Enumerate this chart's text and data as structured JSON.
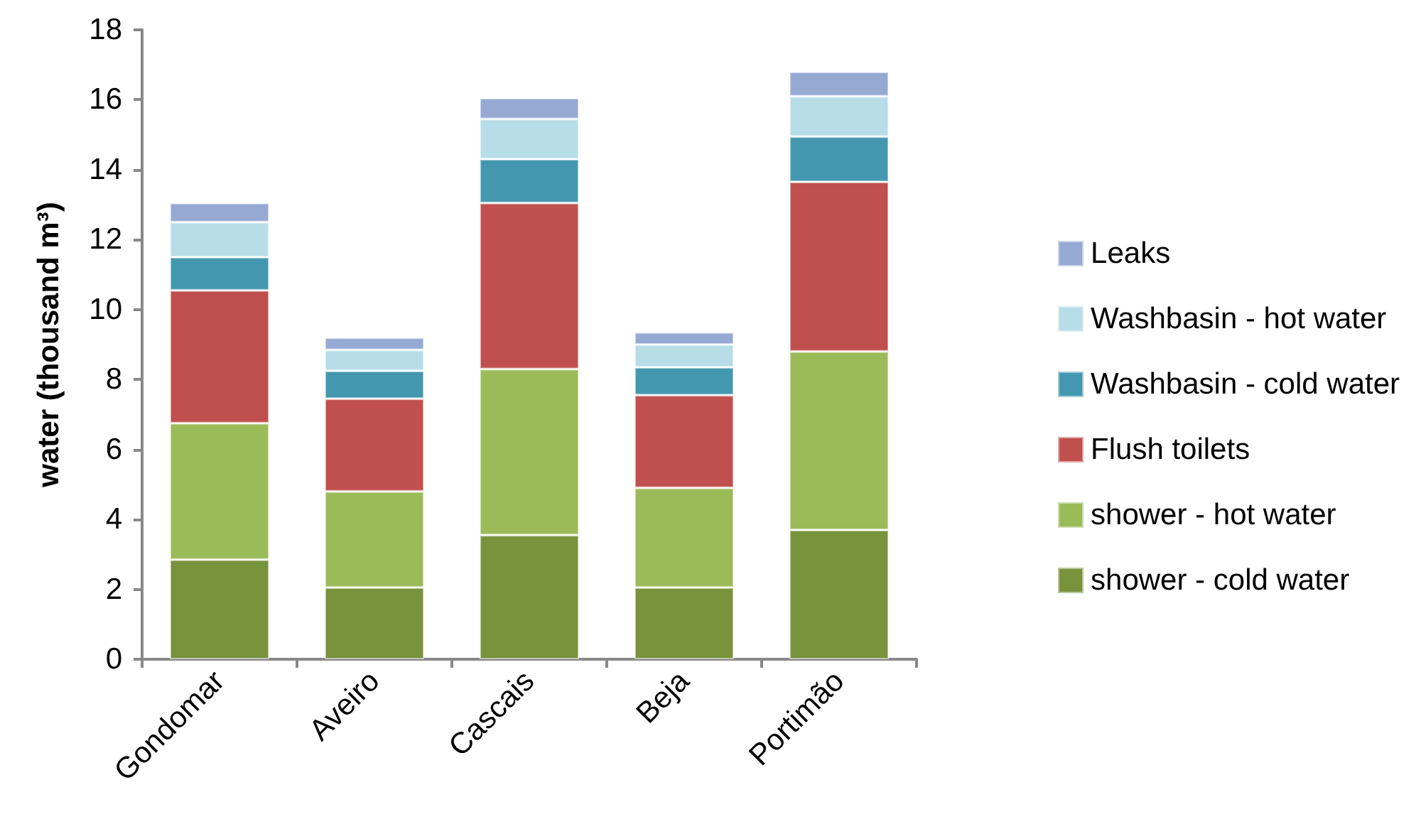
{
  "chart_data": {
    "type": "bar",
    "stacked": true,
    "ylabel": "water (thousand m³)",
    "categories": [
      "Gondomar",
      "Aveiro",
      "Cascais",
      "Beja",
      "Portimão"
    ],
    "series": [
      {
        "name": "shower - cold water",
        "color": "#77933c",
        "values": [
          2.85,
          2.05,
          3.55,
          2.05,
          3.7
        ]
      },
      {
        "name": "shower - hot water",
        "color": "#9bbb59",
        "values": [
          3.9,
          2.75,
          4.75,
          2.85,
          5.1
        ]
      },
      {
        "name": "Flush toilets",
        "color": "#c0504d",
        "values": [
          3.8,
          2.65,
          4.75,
          2.65,
          4.85
        ]
      },
      {
        "name": "Washbasin - cold water",
        "color": "#4398af",
        "values": [
          0.95,
          0.8,
          1.25,
          0.8,
          1.3
        ]
      },
      {
        "name": "Washbasin - hot water",
        "color": "#b7dde8",
        "values": [
          1.0,
          0.6,
          1.15,
          0.65,
          1.15
        ]
      },
      {
        "name": "Leaks",
        "color": "#95a9d3",
        "values": [
          0.55,
          0.35,
          0.6,
          0.35,
          0.7
        ]
      }
    ],
    "ylim": [
      0,
      18
    ],
    "yticks": [
      0,
      2,
      4,
      6,
      8,
      10,
      12,
      14,
      16,
      18
    ],
    "grid": false,
    "legend": "right"
  }
}
